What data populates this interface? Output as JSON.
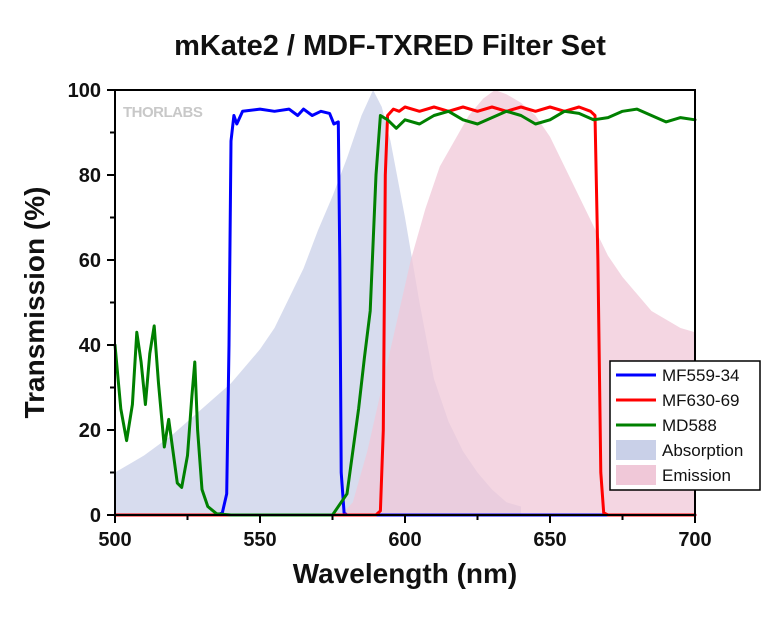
{
  "chart_data": {
    "type": "line",
    "title": "mKate2 / MDF-TXRED Filter Set",
    "xlabel": "Wavelength (nm)",
    "ylabel": "Transmission (%)",
    "xlim": [
      500,
      700
    ],
    "ylim": [
      0,
      100
    ],
    "x_ticks": [
      500,
      550,
      600,
      650,
      700
    ],
    "y_ticks": [
      0,
      20,
      40,
      60,
      80,
      100
    ],
    "watermark": "THORLABS",
    "legend_position": "right",
    "series": [
      {
        "name": "MF559-34",
        "kind": "line",
        "color": "#0000ff",
        "points": [
          [
            500,
            0
          ],
          [
            535,
            0
          ],
          [
            537,
            0.5
          ],
          [
            538.5,
            5
          ],
          [
            539.3,
            40
          ],
          [
            540,
            88
          ],
          [
            541,
            94
          ],
          [
            542,
            92
          ],
          [
            544,
            95
          ],
          [
            550,
            95.5
          ],
          [
            555,
            95
          ],
          [
            560,
            95.5
          ],
          [
            563,
            94
          ],
          [
            565,
            95.5
          ],
          [
            568,
            94
          ],
          [
            571,
            95
          ],
          [
            574,
            94.5
          ],
          [
            575.5,
            92
          ],
          [
            577,
            92.5
          ],
          [
            577.5,
            60
          ],
          [
            578,
            10
          ],
          [
            579,
            0.5
          ],
          [
            580,
            0
          ],
          [
            700,
            0
          ]
        ]
      },
      {
        "name": "MF630-69",
        "kind": "line",
        "color": "#ff0000",
        "points": [
          [
            500,
            0
          ],
          [
            590,
            0
          ],
          [
            591.5,
            1
          ],
          [
            592.5,
            20
          ],
          [
            593.2,
            80
          ],
          [
            594,
            94
          ],
          [
            596,
            95.5
          ],
          [
            598,
            95
          ],
          [
            600,
            96
          ],
          [
            605,
            95
          ],
          [
            610,
            96
          ],
          [
            615,
            95
          ],
          [
            620,
            96
          ],
          [
            625,
            95
          ],
          [
            630,
            96
          ],
          [
            635,
            95
          ],
          [
            640,
            96
          ],
          [
            645,
            95
          ],
          [
            650,
            96
          ],
          [
            655,
            95
          ],
          [
            660,
            96
          ],
          [
            664,
            95
          ],
          [
            665.5,
            94
          ],
          [
            666.5,
            60
          ],
          [
            667.5,
            10
          ],
          [
            668.5,
            0.5
          ],
          [
            670,
            0
          ],
          [
            700,
            0
          ]
        ]
      },
      {
        "name": "MD588",
        "kind": "line",
        "color": "#008000",
        "points": [
          [
            500,
            40
          ],
          [
            502,
            25
          ],
          [
            504,
            17.5
          ],
          [
            506,
            26
          ],
          [
            507.5,
            43
          ],
          [
            509,
            36
          ],
          [
            510.5,
            26
          ],
          [
            512,
            38
          ],
          [
            513.5,
            44.5
          ],
          [
            515,
            31
          ],
          [
            517,
            16
          ],
          [
            518.5,
            22.5
          ],
          [
            520,
            15
          ],
          [
            521.5,
            7.5
          ],
          [
            523,
            6.5
          ],
          [
            525,
            14
          ],
          [
            526.5,
            28
          ],
          [
            527.5,
            36
          ],
          [
            528.5,
            20
          ],
          [
            530,
            6
          ],
          [
            532,
            2
          ],
          [
            535,
            0.3
          ],
          [
            540,
            0
          ],
          [
            575,
            0
          ],
          [
            580,
            5
          ],
          [
            584,
            25
          ],
          [
            586,
            37
          ],
          [
            588,
            48
          ],
          [
            590,
            80
          ],
          [
            591.5,
            94
          ],
          [
            594,
            93
          ],
          [
            597,
            91
          ],
          [
            600,
            93
          ],
          [
            605,
            92
          ],
          [
            610,
            94
          ],
          [
            615,
            95
          ],
          [
            620,
            93
          ],
          [
            625,
            92
          ],
          [
            630,
            93.5
          ],
          [
            635,
            95
          ],
          [
            640,
            94
          ],
          [
            645,
            92
          ],
          [
            650,
            93
          ],
          [
            655,
            95
          ],
          [
            660,
            94.5
          ],
          [
            665,
            93
          ],
          [
            670,
            93.5
          ],
          [
            675,
            95
          ],
          [
            680,
            95.5
          ],
          [
            685,
            94
          ],
          [
            690,
            92.5
          ],
          [
            695,
            93.5
          ],
          [
            700,
            93
          ]
        ]
      },
      {
        "name": "Absorption",
        "kind": "area",
        "color": "#c9d0e8",
        "points": [
          [
            500,
            10
          ],
          [
            510,
            14
          ],
          [
            520,
            19
          ],
          [
            530,
            25
          ],
          [
            540,
            31
          ],
          [
            550,
            39
          ],
          [
            555,
            44
          ],
          [
            560,
            51
          ],
          [
            565,
            58
          ],
          [
            570,
            67
          ],
          [
            575,
            75
          ],
          [
            580,
            84
          ],
          [
            585,
            94
          ],
          [
            589,
            100
          ],
          [
            592,
            96
          ],
          [
            595,
            88
          ],
          [
            600,
            70
          ],
          [
            605,
            50
          ],
          [
            610,
            32
          ],
          [
            615,
            22
          ],
          [
            620,
            15
          ],
          [
            625,
            10
          ],
          [
            630,
            6
          ],
          [
            635,
            3
          ],
          [
            640,
            2
          ]
        ]
      },
      {
        "name": "Emission",
        "kind": "area",
        "color": "#f0c8d8",
        "points": [
          [
            578,
            0
          ],
          [
            582,
            3
          ],
          [
            587,
            15
          ],
          [
            592,
            30
          ],
          [
            597,
            45
          ],
          [
            602,
            60
          ],
          [
            607,
            72
          ],
          [
            612,
            82
          ],
          [
            617,
            88
          ],
          [
            622,
            94
          ],
          [
            627,
            98
          ],
          [
            631,
            100
          ],
          [
            635,
            99
          ],
          [
            640,
            97
          ],
          [
            645,
            94
          ],
          [
            650,
            89
          ],
          [
            655,
            82
          ],
          [
            660,
            75
          ],
          [
            665,
            68
          ],
          [
            670,
            61
          ],
          [
            675,
            56
          ],
          [
            680,
            52
          ],
          [
            685,
            48
          ],
          [
            690,
            46
          ],
          [
            695,
            44
          ],
          [
            700,
            43
          ]
        ]
      }
    ]
  }
}
